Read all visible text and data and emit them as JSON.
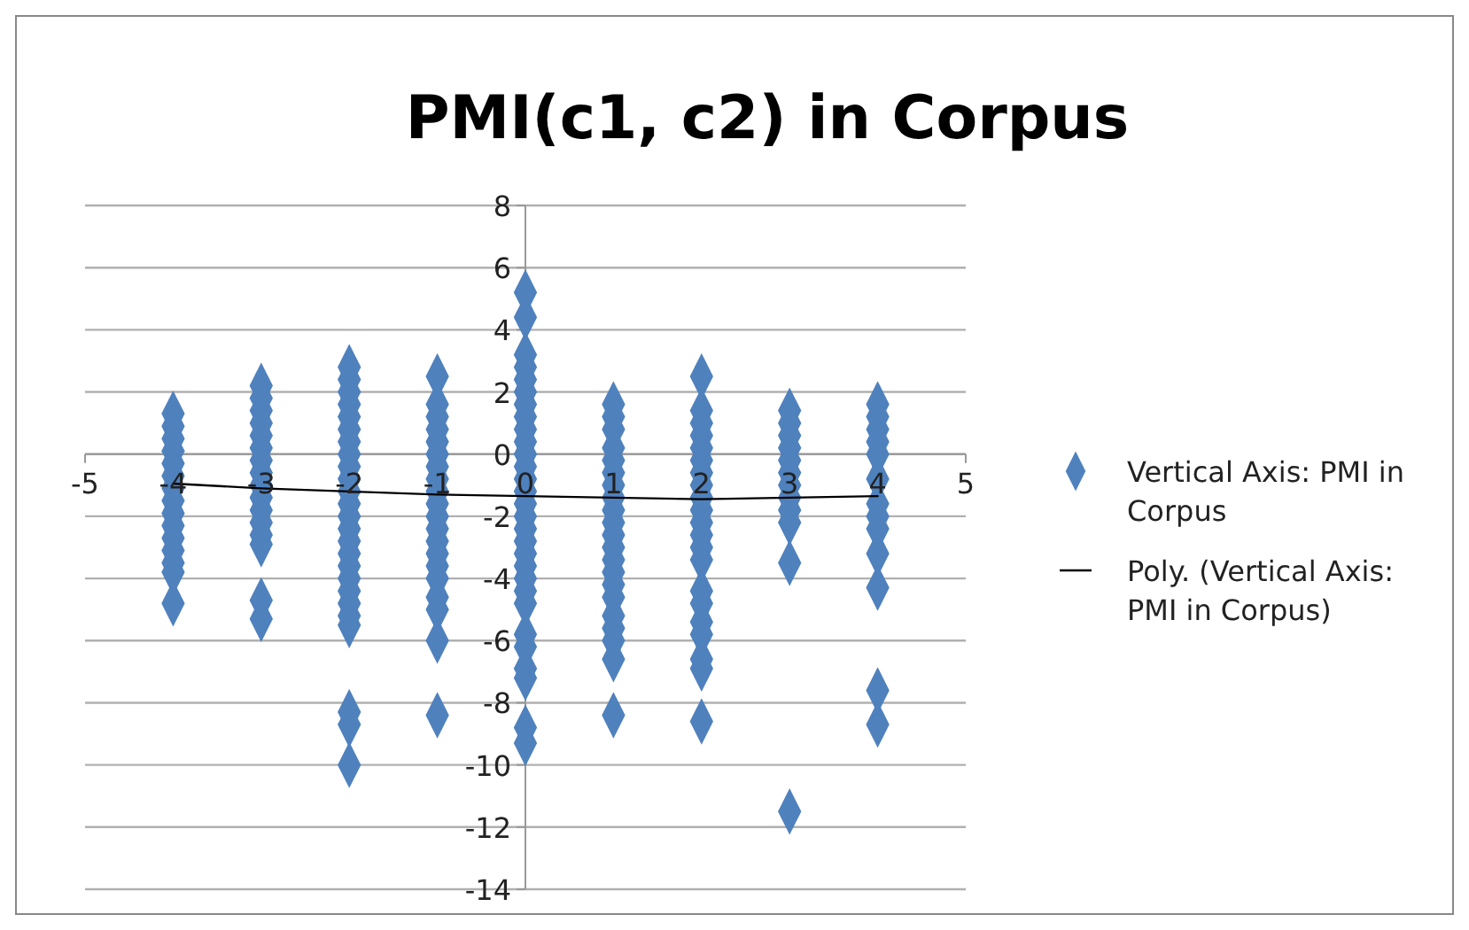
{
  "chart_data": {
    "type": "scatter",
    "title": "PMI(c1, c2) in Corpus",
    "xlim": [
      -5,
      5
    ],
    "xticks": [
      -5,
      -4,
      -3,
      -2,
      -1,
      0,
      1,
      2,
      3,
      4,
      5
    ],
    "ylim": [
      -14,
      8
    ],
    "yticks": [
      -14,
      -12,
      -10,
      -8,
      -6,
      -4,
      -2,
      0,
      2,
      4,
      6,
      8
    ],
    "grid": "y",
    "legend": "right",
    "series": [
      {
        "name": "Vertical Axis: PMI in Corpus",
        "marker": "diamond",
        "color": "#4f81bd",
        "x": [
          -4,
          -4,
          -4,
          -4,
          -4,
          -4,
          -4,
          -4,
          -4,
          -4,
          -4,
          -4,
          -4,
          -4,
          -4,
          -3,
          -3,
          -3,
          -3,
          -3,
          -3,
          -3,
          -3,
          -3,
          -3,
          -3,
          -3,
          -3,
          -3,
          -3,
          -3,
          -2,
          -2,
          -2,
          -2,
          -2,
          -2,
          -2,
          -2,
          -2,
          -2,
          -2,
          -2,
          -2,
          -2,
          -2,
          -2,
          -2,
          -2,
          -2,
          -2,
          -2,
          -2,
          -2,
          -2,
          -2,
          -1,
          -1,
          -1,
          -1,
          -1,
          -1,
          -1,
          -1,
          -1,
          -1,
          -1,
          -1,
          -1,
          -1,
          -1,
          -1,
          -1,
          -1,
          -1,
          -1,
          0,
          0,
          0,
          0,
          0,
          0,
          0,
          0,
          0,
          0,
          0,
          0,
          0,
          0,
          0,
          0,
          0,
          0,
          0,
          0,
          0,
          0,
          0,
          0,
          0,
          0,
          0,
          0,
          0,
          1,
          1,
          1,
          1,
          1,
          1,
          1,
          1,
          1,
          1,
          1,
          1,
          1,
          1,
          1,
          1,
          1,
          1,
          1,
          1,
          1,
          2,
          2,
          2,
          2,
          2,
          2,
          2,
          2,
          2,
          2,
          2,
          2,
          2,
          2,
          2,
          2,
          2,
          2,
          2,
          2,
          2,
          3,
          3,
          3,
          3,
          3,
          3,
          3,
          3,
          3,
          3,
          3,
          3,
          4,
          4,
          4,
          4,
          4,
          4,
          4,
          4,
          4,
          4,
          4,
          4,
          4
        ],
        "values": [
          1.3,
          0.9,
          0.5,
          0.1,
          -0.3,
          -0.7,
          -1.1,
          -1.5,
          -1.9,
          -2.3,
          -2.7,
          -3.1,
          -3.5,
          -3.8,
          -4.8,
          2.2,
          1.8,
          1.4,
          1.0,
          0.6,
          0.2,
          -0.2,
          -0.6,
          -1.0,
          -1.4,
          -1.8,
          -2.2,
          -2.6,
          -2.9,
          -4.7,
          -5.3,
          2.8,
          2.4,
          2.0,
          1.6,
          1.2,
          0.8,
          0.4,
          0,
          -0.4,
          -0.8,
          -1.2,
          -1.6,
          -2.0,
          -2.4,
          -2.8,
          -3.2,
          -3.6,
          -4.0,
          -4.4,
          -4.8,
          -5.2,
          -5.5,
          -8.3,
          -8.7,
          -10.0,
          2.5,
          1.6,
          1.2,
          0.8,
          0.4,
          0,
          -0.4,
          -0.8,
          -1.2,
          -1.6,
          -2.0,
          -2.4,
          -2.8,
          -3.2,
          -3.6,
          -4.0,
          -4.6,
          -5.0,
          -6.0,
          -8.4,
          5.2,
          4.4,
          3.2,
          2.8,
          2.4,
          2.0,
          1.6,
          1.2,
          0.8,
          0.4,
          0,
          -0.4,
          -0.8,
          -1.2,
          -1.6,
          -2.0,
          -2.4,
          -2.8,
          -3.2,
          -3.6,
          -4.0,
          -4.4,
          -4.8,
          -5.8,
          -6.2,
          -6.9,
          -7.2,
          -8.8,
          -9.3,
          1.6,
          1.2,
          0.8,
          0.2,
          -0.2,
          -0.6,
          -1.0,
          -1.4,
          -1.8,
          -2.2,
          -2.6,
          -3.0,
          -3.4,
          -3.8,
          -4.2,
          -4.6,
          -5.2,
          -5.6,
          -6.0,
          -6.6,
          -8.4,
          2.5,
          1.4,
          1.0,
          0.6,
          0.2,
          -0.2,
          -0.6,
          -1.0,
          -1.4,
          -1.8,
          -2.2,
          -2.6,
          -3.0,
          -3.4,
          -4.4,
          -4.8,
          -5.4,
          -5.8,
          -6.6,
          -6.9,
          -8.6,
          1.4,
          1.0,
          0.6,
          0.2,
          -0.2,
          -0.6,
          -1.0,
          -1.4,
          -1.8,
          -2.2,
          -3.5,
          -11.5,
          1.6,
          1.2,
          0.8,
          0.4,
          0,
          -0.8,
          -1.6,
          -2.0,
          -2.4,
          -3.2,
          -4.3,
          -7.6,
          -8.7
        ]
      },
      {
        "name": "Poly. (Vertical Axis: PMI in Corpus)",
        "type": "line",
        "marker": "none",
        "line_style": "solid",
        "color": "#000000",
        "x": [
          -4,
          -3,
          -2,
          -1,
          0,
          1,
          2,
          3,
          4
        ],
        "values": [
          -0.95,
          -1.1,
          -1.2,
          -1.3,
          -1.35,
          -1.4,
          -1.45,
          -1.4,
          -1.35
        ]
      }
    ]
  }
}
